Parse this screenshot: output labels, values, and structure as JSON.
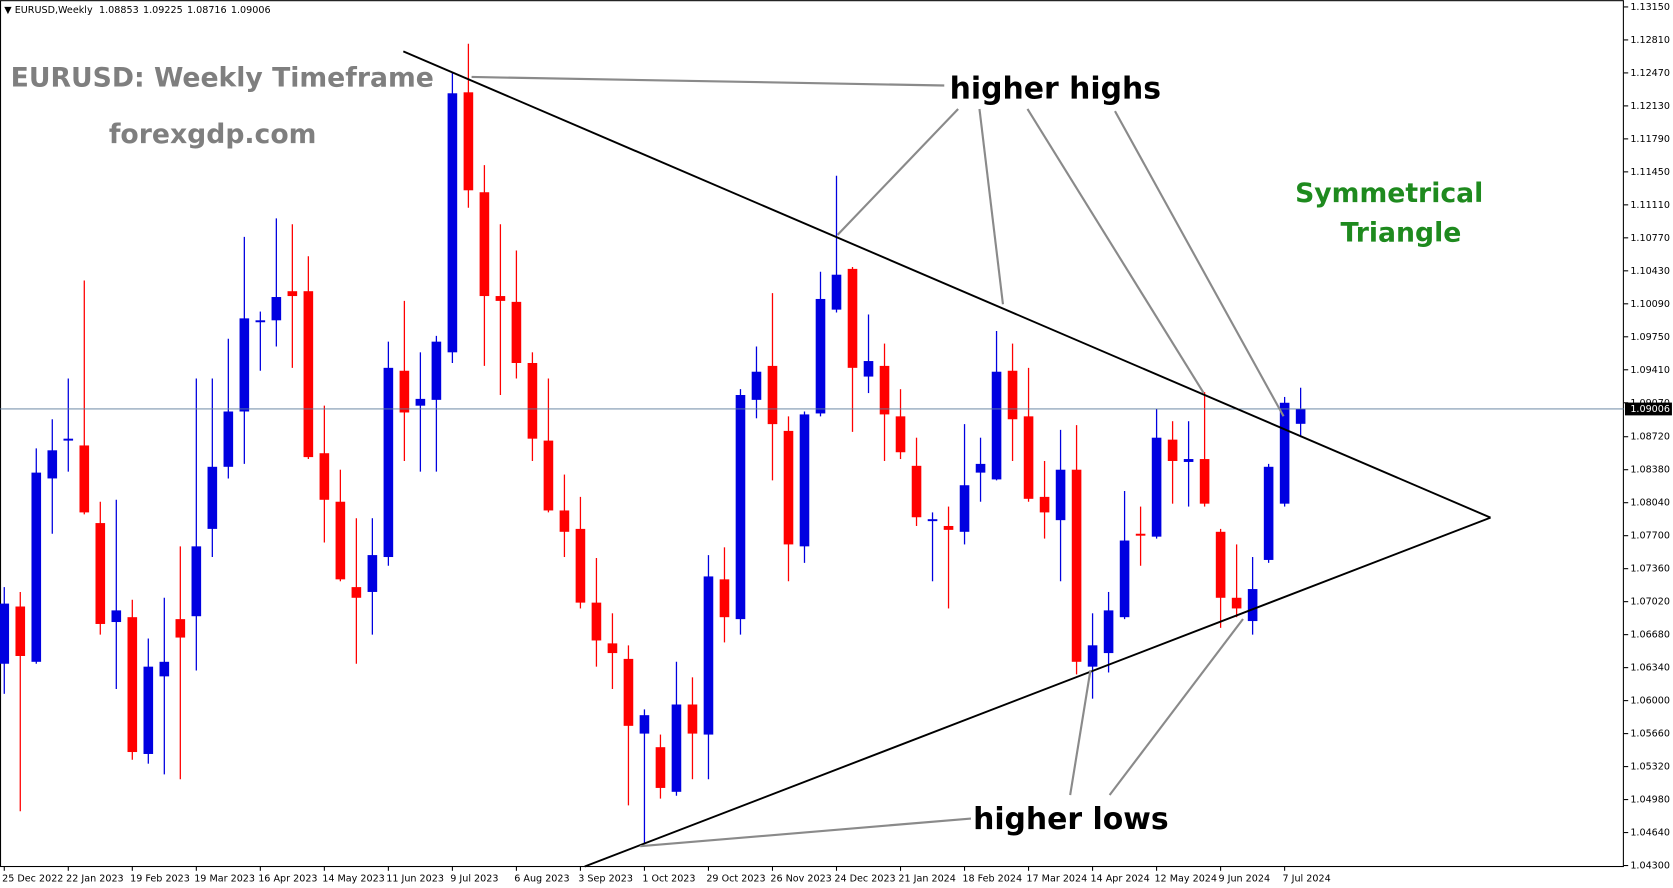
{
  "header": {
    "symbol": "EURUSD,Weekly"
  },
  "chart_data": {
    "type": "candlestick",
    "title": "EURUSD: Weekly Timeframe",
    "subtitle": "forexgdp.com",
    "annotations": [
      "higher highs",
      "higher lows",
      "Symmetrical",
      "Triangle"
    ],
    "categories": [
      "25 Dec 2022",
      null,
      null,
      null,
      "22 Jan 2023",
      null,
      null,
      null,
      "19 Feb 2023",
      null,
      null,
      null,
      "19 Mar 2023",
      null,
      null,
      null,
      "16 Apr 2023",
      null,
      null,
      null,
      "14 May 2023",
      null,
      null,
      null,
      "11 Jun 2023",
      null,
      null,
      null,
      "9 Jul 2023",
      null,
      null,
      null,
      "6 Aug 2023",
      null,
      null,
      null,
      "3 Sep 2023",
      null,
      null,
      null,
      "1 Oct 2023",
      null,
      null,
      null,
      "29 Oct 2023",
      null,
      null,
      null,
      "26 Nov 2023",
      null,
      null,
      null,
      "24 Dec 2023",
      null,
      null,
      null,
      "21 Jan 2024",
      null,
      null,
      null,
      "18 Feb 2024",
      null,
      null,
      null,
      "17 Mar 2024",
      null,
      null,
      null,
      "14 Apr 2024",
      null,
      null,
      null,
      "12 May 2024",
      null,
      null,
      null,
      "9 Jun 2024",
      null,
      null,
      null,
      "7 Jul 2024",
      null
    ],
    "open": [
      1.0638,
      1.0697,
      1.064,
      1.0829,
      1.0868,
      1.0863,
      1.0783,
      1.0681,
      1.0686,
      1.0545,
      1.0625,
      1.0684,
      1.0687,
      1.0777,
      1.0841,
      1.0898,
      1.099,
      1.0992,
      1.1022,
      1.1022,
      1.0855,
      1.0805,
      1.0717,
      1.0712,
      1.0748,
      1.094,
      1.0904,
      1.091,
      1.0959,
      1.1227,
      1.1124,
      1.1017,
      1.1011,
      1.0948,
      1.0868,
      1.0796,
      1.0777,
      1.0701,
      1.0659,
      1.0643,
      1.0566,
      1.0552,
      1.0506,
      1.0596,
      1.0565,
      1.0725,
      1.0684,
      1.091,
      1.0945,
      1.0878,
      1.0759,
      1.0896,
      1.1003,
      1.1045,
      1.0934,
      1.0945,
      1.0893,
      1.0842,
      1.0785,
      1.078,
      1.0774,
      1.0835,
      1.0828,
      1.094,
      1.0893,
      1.081,
      1.0786,
      1.0838,
      1.0635,
      1.0649,
      1.0686,
      1.0772,
      1.0769,
      1.0869,
      1.0846,
      1.0849,
      1.0774,
      1.0706,
      1.0682,
      1.0745,
      1.0803,
      1.08853
    ],
    "high": [
      1.0717,
      1.0712,
      1.086,
      1.089,
      1.0932,
      1.1033,
      1.0805,
      1.0807,
      1.0704,
      1.0664,
      1.0706,
      1.0759,
      1.0932,
      1.0932,
      1.0973,
      1.1078,
      1.1001,
      1.1097,
      1.1091,
      1.1058,
      1.0904,
      1.0838,
      1.0788,
      1.0788,
      1.097,
      1.1012,
      1.0959,
      1.0976,
      1.1247,
      1.1277,
      1.1152,
      1.1091,
      1.1064,
      1.0959,
      1.0932,
      1.0833,
      1.081,
      1.0747,
      1.069,
      1.0657,
      1.0591,
      1.0565,
      1.064,
      1.0624,
      1.075,
      1.0758,
      1.0921,
      1.0965,
      1.102,
      1.0893,
      1.0898,
      1.1042,
      1.1141,
      1.1047,
      1.0998,
      1.0968,
      1.0921,
      1.0871,
      1.0794,
      1.08,
      1.0885,
      1.0871,
      1.0981,
      1.0968,
      1.0943,
      1.0847,
      1.0879,
      1.0884,
      1.069,
      1.0712,
      1.0816,
      1.08,
      1.0901,
      1.0888,
      1.0888,
      1.0918,
      1.0777,
      1.0761,
      1.0748,
      1.0844,
      1.0913,
      1.09225
    ],
    "low": [
      1.0607,
      1.0486,
      1.0638,
      1.0772,
      1.0836,
      1.0792,
      1.0668,
      1.0612,
      1.0539,
      1.0535,
      1.0524,
      1.0519,
      1.0631,
      1.0748,
      1.0829,
      1.0844,
      1.094,
      1.0965,
      1.0943,
      1.0849,
      1.0763,
      1.0723,
      1.0638,
      1.0668,
      1.0739,
      1.0847,
      1.0836,
      1.0836,
      1.0948,
      1.1108,
      1.0945,
      1.0915,
      1.0932,
      1.0847,
      1.0794,
      1.0748,
      1.0695,
      1.0635,
      1.0612,
      1.0492,
      1.0453,
      1.0499,
      1.0502,
      1.0519,
      1.0519,
      1.066,
      1.0668,
      1.0891,
      1.0827,
      1.0723,
      1.0742,
      1.0893,
      1.1,
      1.0877,
      1.0917,
      1.0847,
      1.0849,
      1.078,
      1.0723,
      1.0695,
      1.0761,
      1.0805,
      1.0827,
      1.0847,
      1.0805,
      1.0767,
      1.0723,
      1.0627,
      1.0602,
      1.0629,
      1.0684,
      1.0739,
      1.0767,
      1.0803,
      1.08,
      1.08,
      1.0675,
      1.0686,
      1.0668,
      1.0742,
      1.08,
      1.08716
    ],
    "close": [
      1.07,
      1.0646,
      1.0835,
      1.0858,
      1.087,
      1.0794,
      1.0679,
      1.0693,
      1.0547,
      1.0635,
      1.064,
      1.0665,
      1.0759,
      1.0841,
      1.0898,
      1.0994,
      1.0992,
      1.1016,
      1.1017,
      1.0851,
      1.0807,
      1.0725,
      1.0706,
      1.075,
      1.0943,
      1.0897,
      1.0911,
      1.097,
      1.1226,
      1.1126,
      1.1017,
      1.1012,
      1.0948,
      1.087,
      1.0796,
      1.0774,
      1.0701,
      1.0662,
      1.0649,
      1.0574,
      1.0585,
      1.051,
      1.0596,
      1.0566,
      1.0728,
      1.0686,
      1.0915,
      1.0939,
      1.0885,
      1.0761,
      1.0895,
      1.1014,
      1.1039,
      1.0943,
      1.095,
      1.0895,
      1.0856,
      1.0789,
      1.0787,
      1.0776,
      1.0822,
      1.0844,
      1.0939,
      1.089,
      1.0808,
      1.0794,
      1.0838,
      1.064,
      1.0657,
      1.0693,
      1.0765,
      1.077,
      1.0871,
      1.0847,
      1.0849,
      1.0803,
      1.0706,
      1.0695,
      1.0715,
      1.0841,
      1.0907,
      1.09006
    ],
    "up_color": "#0000e0",
    "down_color": "#ff0000",
    "ylim": [
      1.0429,
      1.1322
    ],
    "yticks": [
      {
        "value": 1.1315,
        "label": "1.13150"
      },
      {
        "value": 1.1281,
        "label": "1.12810"
      },
      {
        "value": 1.1247,
        "label": "1.12470"
      },
      {
        "value": 1.1213,
        "label": "1.12130"
      },
      {
        "value": 1.1179,
        "label": "1.11790"
      },
      {
        "value": 1.1145,
        "label": "1.11450"
      },
      {
        "value": 1.1111,
        "label": "1.11110"
      },
      {
        "value": 1.1077,
        "label": "1.10770"
      },
      {
        "value": 1.1043,
        "label": "1.10430"
      },
      {
        "value": 1.1009,
        "label": "1.10090"
      },
      {
        "value": 1.0975,
        "label": "1.09750"
      },
      {
        "value": 1.0941,
        "label": "1.09410"
      },
      {
        "value": 1.0907,
        "label": "1.09070"
      },
      {
        "value": 1.0872,
        "label": "1.08720"
      },
      {
        "value": 1.0838,
        "label": "1.08380"
      },
      {
        "value": 1.0804,
        "label": "1.08040"
      },
      {
        "value": 1.077,
        "label": "1.07700"
      },
      {
        "value": 1.0736,
        "label": "1.07360"
      },
      {
        "value": 1.0702,
        "label": "1.07020"
      },
      {
        "value": 1.0668,
        "label": "1.06680"
      },
      {
        "value": 1.0634,
        "label": "1.06340"
      },
      {
        "value": 1.06,
        "label": "1.06000"
      },
      {
        "value": 1.0566,
        "label": "1.05660"
      },
      {
        "value": 1.0532,
        "label": "1.05320"
      },
      {
        "value": 1.0498,
        "label": "1.04980"
      },
      {
        "value": 1.0464,
        "label": "1.04640"
      },
      {
        "value": 1.043,
        "label": "1.04300"
      }
    ],
    "grid": false,
    "price_line_color": "#5a7a9a"
  }
}
